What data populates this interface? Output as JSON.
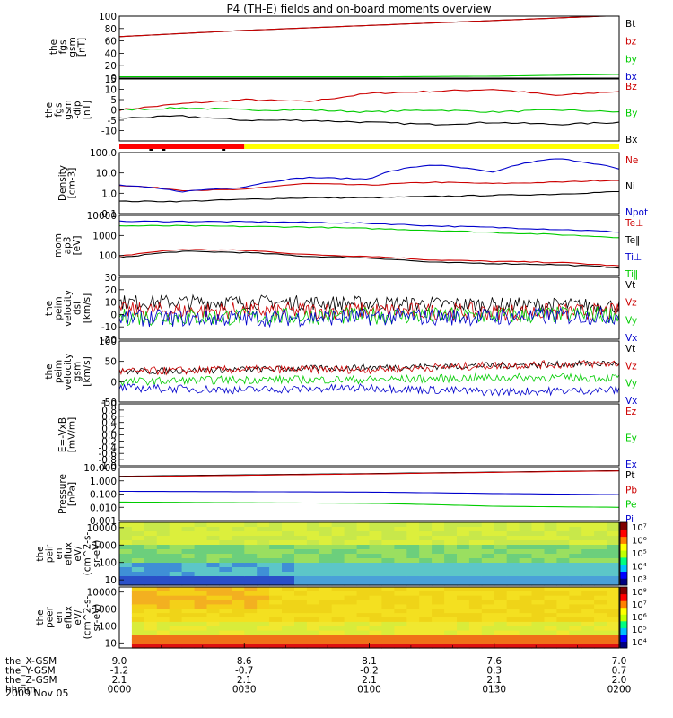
{
  "figure": {
    "title": "P4 (TH-E) fields and on-board moments overview",
    "date_label": "2009 Nov 05"
  },
  "time_axis": {
    "tick_hhmm": [
      "0000",
      "0030",
      "0100",
      "0130",
      "0200"
    ],
    "rows": [
      {
        "label": "the_X-GSM",
        "values": [
          "9.0",
          "8.6",
          "8.1",
          "7.6",
          "7.0"
        ]
      },
      {
        "label": "the_Y-GSM",
        "values": [
          "-1.2",
          "-0.7",
          "-0.2",
          "0.3",
          "0.7"
        ]
      },
      {
        "label": "the_Z-GSM",
        "values": [
          "2.1",
          "2.1",
          "2.1",
          "2.1",
          "2.0"
        ]
      },
      {
        "label": "hhmm",
        "values": [
          "0000",
          "0030",
          "0100",
          "0130",
          "0200"
        ]
      }
    ]
  },
  "colors": {
    "black": "#000000",
    "red": "#cc0000",
    "green": "#00cc00",
    "blue": "#0000cc",
    "yellow": "#ffff00",
    "bar_red": "#ff0000"
  },
  "mode_bar": {
    "segments": [
      {
        "from": "0000",
        "to": "0030",
        "color": "red"
      },
      {
        "from": "0030",
        "to": "0200",
        "color": "yellow"
      }
    ]
  },
  "chart_data": [
    {
      "type": "line",
      "ylabel": [
        "the",
        "fgs",
        "gsm",
        "[nT]"
      ],
      "ylim": [
        0,
        100
      ],
      "scale": "linear",
      "yticks": [
        "0",
        "20",
        "40",
        "60",
        "80",
        "100"
      ],
      "x": [
        "0000",
        "0030",
        "0100",
        "0130",
        "0200"
      ],
      "series": [
        {
          "name": "Bt",
          "color": "black",
          "values": [
            67,
            77,
            85,
            93,
            101
          ]
        },
        {
          "name": "bz",
          "color": "red",
          "values": [
            67,
            77,
            85,
            93,
            101
          ]
        },
        {
          "name": "by",
          "color": "green",
          "values": [
            2,
            2,
            2,
            3,
            6
          ]
        },
        {
          "name": "bx",
          "color": "blue",
          "values": [
            -1,
            -1,
            -1,
            -1,
            -1
          ]
        }
      ]
    },
    {
      "type": "line",
      "ylabel": [
        "the",
        "fgs",
        "gsm",
        "-dip",
        "[nT]"
      ],
      "ylim": [
        -15,
        15
      ],
      "scale": "linear",
      "yticks": [
        "-10",
        "-5",
        "0",
        "5",
        "10",
        "15"
      ],
      "x": [
        "0000",
        "0015",
        "0030",
        "0045",
        "0100",
        "0115",
        "0130",
        "0145",
        "0200"
      ],
      "series": [
        {
          "name": "Bz",
          "color": "red",
          "values": [
            0,
            3,
            5,
            4,
            8,
            9,
            10,
            7,
            9
          ]
        },
        {
          "name": "By",
          "color": "green",
          "values": [
            0,
            1,
            0,
            0,
            -1,
            0,
            -1,
            0,
            -1
          ]
        },
        {
          "name": "Bx",
          "color": "black",
          "values": [
            -4,
            -3,
            -5,
            -5,
            -6,
            -7,
            -6,
            -7,
            -6
          ]
        }
      ]
    },
    {
      "type": "line",
      "ylabel": [
        "Density",
        "[cm-3]"
      ],
      "ylim": [
        0.1,
        100
      ],
      "scale": "log",
      "yticks": [
        "0.1",
        "1.0",
        "10.0",
        "100.0"
      ],
      "x": [
        "0000",
        "0015",
        "0030",
        "0045",
        "0100",
        "0115",
        "0130",
        "0145",
        "0200"
      ],
      "series": [
        {
          "name": "Ne",
          "color": "red",
          "values": [
            2.5,
            1.4,
            1.5,
            3.0,
            2.5,
            3.5,
            3.0,
            3.5,
            4.5
          ]
        },
        {
          "name": "Ni",
          "color": "black",
          "values": [
            0.4,
            0.4,
            0.5,
            0.6,
            0.6,
            0.7,
            0.8,
            0.9,
            1.2
          ]
        },
        {
          "name": "Npot",
          "color": "blue",
          "values": [
            2.5,
            1.2,
            2.0,
            6.0,
            5.0,
            25.0,
            10.0,
            50.0,
            15.0
          ]
        }
      ]
    },
    {
      "type": "line",
      "ylabel": [
        "mom",
        "ap3",
        "[eV]"
      ],
      "ylim": [
        10,
        10000
      ],
      "scale": "log",
      "yticks": [
        "100",
        "1000",
        "10000"
      ],
      "x": [
        "0000",
        "0015",
        "0030",
        "0045",
        "0100",
        "0115",
        "0130",
        "0145",
        "0200"
      ],
      "series": [
        {
          "name": "Te⊥",
          "color": "red",
          "values": [
            90,
            200,
            180,
            110,
            90,
            60,
            50,
            45,
            30
          ]
        },
        {
          "name": "Te‖",
          "color": "black",
          "values": [
            75,
            160,
            140,
            90,
            75,
            45,
            40,
            35,
            25
          ]
        },
        {
          "name": "Ti⊥",
          "color": "blue",
          "values": [
            5000,
            5000,
            4800,
            4500,
            4000,
            3000,
            2500,
            2000,
            1500
          ]
        },
        {
          "name": "Ti‖",
          "color": "green",
          "values": [
            3000,
            3000,
            2800,
            2600,
            2200,
            1800,
            1400,
            1100,
            800
          ]
        }
      ]
    },
    {
      "type": "line",
      "ylabel": [
        "the",
        "peim",
        "velocity",
        "dsl",
        "[km/s]"
      ],
      "ylim": [
        -20,
        30
      ],
      "scale": "linear",
      "yticks": [
        "-20",
        "-10",
        "0",
        "10",
        "20",
        "30"
      ],
      "x": [
        "0000",
        "0030",
        "0100",
        "0130",
        "0200"
      ],
      "series": [
        {
          "name": "Vt",
          "color": "black",
          "values": [
            10,
            10,
            9,
            8,
            7
          ]
        },
        {
          "name": "Vz",
          "color": "red",
          "values": [
            3,
            3,
            3,
            2,
            2
          ]
        },
        {
          "name": "Vy",
          "color": "green",
          "values": [
            -2,
            -2,
            -1,
            -1,
            0
          ]
        },
        {
          "name": "Vx",
          "color": "blue",
          "values": [
            -3,
            -3,
            -2,
            -2,
            -1
          ]
        }
      ]
    },
    {
      "type": "line",
      "ylabel": [
        "the",
        "peim",
        "velocity",
        "gsm",
        "[km/s]"
      ],
      "ylim": [
        -50,
        100
      ],
      "scale": "linear",
      "yticks": [
        "-50",
        "0",
        "50",
        "100"
      ],
      "x": [
        "0000",
        "0030",
        "0100",
        "0130",
        "0200"
      ],
      "series": [
        {
          "name": "Vt",
          "color": "black",
          "values": [
            25,
            30,
            35,
            40,
            45
          ]
        },
        {
          "name": "Vz",
          "color": "red",
          "values": [
            25,
            30,
            30,
            40,
            45
          ]
        },
        {
          "name": "Vy",
          "color": "green",
          "values": [
            0,
            5,
            5,
            10,
            10
          ]
        },
        {
          "name": "Vx",
          "color": "blue",
          "values": [
            -15,
            -20,
            -15,
            -25,
            -20
          ]
        }
      ]
    },
    {
      "type": "line",
      "ylabel": [
        "E=-VxB",
        "[mV/m]"
      ],
      "ylim": [
        -1,
        1
      ],
      "scale": "linear",
      "yticks": [
        "-1.0",
        "-0.8",
        "-0.6",
        "-0.4",
        "-0.2",
        "0.0",
        "0.2",
        "0.4",
        "0.6",
        "0.8",
        "1.0"
      ],
      "x": [],
      "series": [
        {
          "name": "Ez",
          "color": "red",
          "values": []
        },
        {
          "name": "Ey",
          "color": "green",
          "values": []
        },
        {
          "name": "Ex",
          "color": "blue",
          "values": []
        }
      ]
    },
    {
      "type": "line",
      "ylabel": [
        "Pressure",
        "[nPa]"
      ],
      "ylim": [
        0.001,
        10
      ],
      "scale": "log",
      "yticks": [
        "0.001",
        "0.010",
        "0.100",
        "1.000",
        "10.000"
      ],
      "x": [
        "0000",
        "0030",
        "0100",
        "0130",
        "0200"
      ],
      "series": [
        {
          "name": "Pt",
          "color": "black",
          "values": [
            2.2,
            2.8,
            3.5,
            4.5,
            5.8
          ]
        },
        {
          "name": "Pb",
          "color": "red",
          "values": [
            2.0,
            2.6,
            3.3,
            4.3,
            5.6
          ]
        },
        {
          "name": "Pe",
          "color": "green",
          "values": [
            0.025,
            0.022,
            0.02,
            0.012,
            0.01
          ]
        },
        {
          "name": "Pi",
          "color": "blue",
          "values": [
            0.16,
            0.15,
            0.14,
            0.11,
            0.09
          ]
        }
      ]
    },
    {
      "type": "heatmap",
      "ylabel": [
        "the",
        "peir",
        "en",
        "eflux",
        "eV/",
        "(cm^2-s-",
        "sr-eV)"
      ],
      "ylim": [
        5,
        20000
      ],
      "scale": "log",
      "yticks": [
        "10",
        "100",
        "1000",
        "10000"
      ],
      "colorbar_ticks": [
        "10³",
        "10⁴",
        "10⁵",
        "10⁶",
        "10⁷"
      ]
    },
    {
      "type": "heatmap",
      "ylabel": [
        "the",
        "peer",
        "en",
        "eflux",
        "eV/",
        "(cm^2-s-",
        "sr-eV)"
      ],
      "ylim": [
        5,
        20000
      ],
      "scale": "log",
      "yticks": [
        "10",
        "100",
        "1000",
        "10000"
      ],
      "colorbar_ticks": [
        "10⁴",
        "10⁵",
        "10⁶",
        "10⁷",
        "10⁸"
      ]
    }
  ]
}
